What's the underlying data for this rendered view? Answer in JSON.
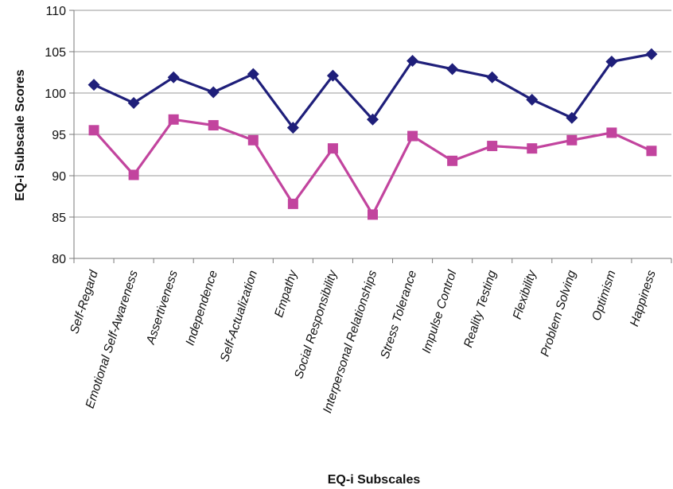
{
  "chart_data": {
    "type": "line",
    "xlabel": "EQ-i Subscales",
    "ylabel": "EQ-i Subscale Scores",
    "ylim": [
      80,
      110
    ],
    "yticks": [
      80,
      85,
      90,
      95,
      100,
      105,
      110
    ],
    "grid": "horizontal",
    "legend": "none",
    "categories": [
      "Self-Regard",
      "Emotional Self-Awareness",
      "Assertiveness",
      "Independence",
      "Self-Actualization",
      "Empathy",
      "Social Responsibility",
      "Interpersonal Relationships",
      "Stress Tolerance",
      "Impulse Control",
      "Reality Testing",
      "Flexibility",
      "Problem Solving",
      "Optimism",
      "Happiness"
    ],
    "series": [
      {
        "marker": "diamond",
        "color": "#1f1f7a",
        "values": [
          101.0,
          98.8,
          101.9,
          100.1,
          102.3,
          95.8,
          102.1,
          96.8,
          103.9,
          102.9,
          101.9,
          99.2,
          97.0,
          103.8,
          104.7
        ]
      },
      {
        "marker": "square",
        "color": "#c2449e",
        "values": [
          95.5,
          90.1,
          96.8,
          96.1,
          94.3,
          86.6,
          93.3,
          85.3,
          94.8,
          91.8,
          93.6,
          93.3,
          94.3,
          95.2,
          93.0
        ]
      }
    ]
  }
}
